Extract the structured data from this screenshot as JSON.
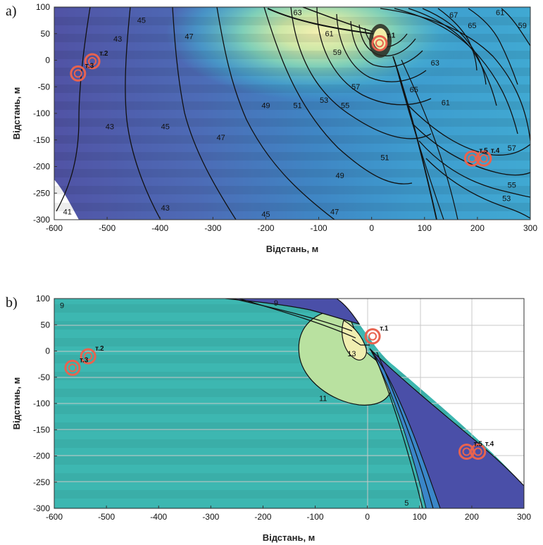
{
  "chart_data": [
    {
      "type": "contour",
      "panel_label": "a)",
      "xlabel": "Відстань, м",
      "ylabel": "Відстань, м",
      "xlim": [
        -600,
        300
      ],
      "ylim": [
        -300,
        100
      ],
      "xticks": [
        "-600",
        "-500",
        "-400",
        "-300",
        "-200",
        "-100",
        "0",
        "100",
        "200",
        "300"
      ],
      "yticks": [
        "100",
        "50",
        "0",
        "-50",
        "-100",
        "-150",
        "-200",
        "-250",
        "-300"
      ],
      "contour_labels": [
        {
          "text": "43",
          "x": -480,
          "y": 35
        },
        {
          "text": "45",
          "x": -435,
          "y": 70
        },
        {
          "text": "47",
          "x": -345,
          "y": 40
        },
        {
          "text": "43",
          "x": -495,
          "y": -130
        },
        {
          "text": "45",
          "x": -390,
          "y": -130
        },
        {
          "text": "47",
          "x": -285,
          "y": -150
        },
        {
          "text": "49",
          "x": -200,
          "y": -90
        },
        {
          "text": "51",
          "x": -140,
          "y": -90
        },
        {
          "text": "53",
          "x": -90,
          "y": -80
        },
        {
          "text": "55",
          "x": -50,
          "y": -90
        },
        {
          "text": "57",
          "x": -30,
          "y": -55
        },
        {
          "text": "59",
          "x": -65,
          "y": 10
        },
        {
          "text": "61",
          "x": -80,
          "y": 45
        },
        {
          "text": "63",
          "x": -140,
          "y": 85
        },
        {
          "text": "49",
          "x": -60,
          "y": -222
        },
        {
          "text": "47",
          "x": -70,
          "y": -290
        },
        {
          "text": "45",
          "x": -200,
          "y": -300
        },
        {
          "text": "43",
          "x": -390,
          "y": -283
        },
        {
          "text": "41",
          "x": -575,
          "y": -290
        },
        {
          "text": "51",
          "x": 25,
          "y": -188
        },
        {
          "text": "65",
          "x": 80,
          "y": -60
        },
        {
          "text": "63",
          "x": 120,
          "y": -10
        },
        {
          "text": "61",
          "x": 140,
          "y": -85
        },
        {
          "text": "65",
          "x": 190,
          "y": 60
        },
        {
          "text": "67",
          "x": 155,
          "y": 80
        },
        {
          "text": "61",
          "x": 243,
          "y": 85
        },
        {
          "text": "59",
          "x": 285,
          "y": 60
        },
        {
          "text": "57",
          "x": 265,
          "y": -170
        },
        {
          "text": "55",
          "x": 265,
          "y": -240
        },
        {
          "text": "53",
          "x": 255,
          "y": -265
        }
      ],
      "points": [
        {
          "name": "т.1",
          "x": 15,
          "y": 32
        },
        {
          "name": "т.2",
          "x": -528,
          "y": -2
        },
        {
          "name": "т.3",
          "x": -555,
          "y": -25
        },
        {
          "name": "т.4",
          "x": 212,
          "y": -185
        },
        {
          "name": "т.5",
          "x": 190,
          "y": -185
        }
      ],
      "colors": {
        "low": "#5a58a8",
        "mid": "#3f8cc8",
        "high": "#eeeeb0"
      }
    },
    {
      "type": "contour",
      "panel_label": "b)",
      "xlabel": "Відстань, м",
      "ylabel": "Відстань, м",
      "xlim": [
        -600,
        300
      ],
      "ylim": [
        -300,
        100
      ],
      "xticks": [
        "-600",
        "-500",
        "-400",
        "-300",
        "-200",
        "-100",
        "0",
        "100",
        "200",
        "300"
      ],
      "yticks": [
        "100",
        "50",
        "0",
        "-50",
        "-100",
        "-150",
        "-200",
        "-250",
        "-300"
      ],
      "contour_labels": [
        {
          "text": "9",
          "x": -585,
          "y": 82
        },
        {
          "text": "9",
          "x": -175,
          "y": 92
        },
        {
          "text": "11",
          "x": -85,
          "y": -95
        },
        {
          "text": "13",
          "x": -30,
          "y": -10
        },
        {
          "text": "5",
          "x": 75,
          "y": -300
        }
      ],
      "points": [
        {
          "name": "т.1",
          "x": 10,
          "y": 28
        },
        {
          "name": "т.2",
          "x": -535,
          "y": -10
        },
        {
          "name": "т.3",
          "x": -565,
          "y": -32
        },
        {
          "name": "т.4",
          "x": 212,
          "y": -192
        },
        {
          "name": "т.5",
          "x": 190,
          "y": -192
        }
      ],
      "colors": {
        "main": "#3fb8b2",
        "light": "#b9e1a0",
        "lightest": "#f0eeb0",
        "dark": "#4a4fa8"
      }
    }
  ]
}
